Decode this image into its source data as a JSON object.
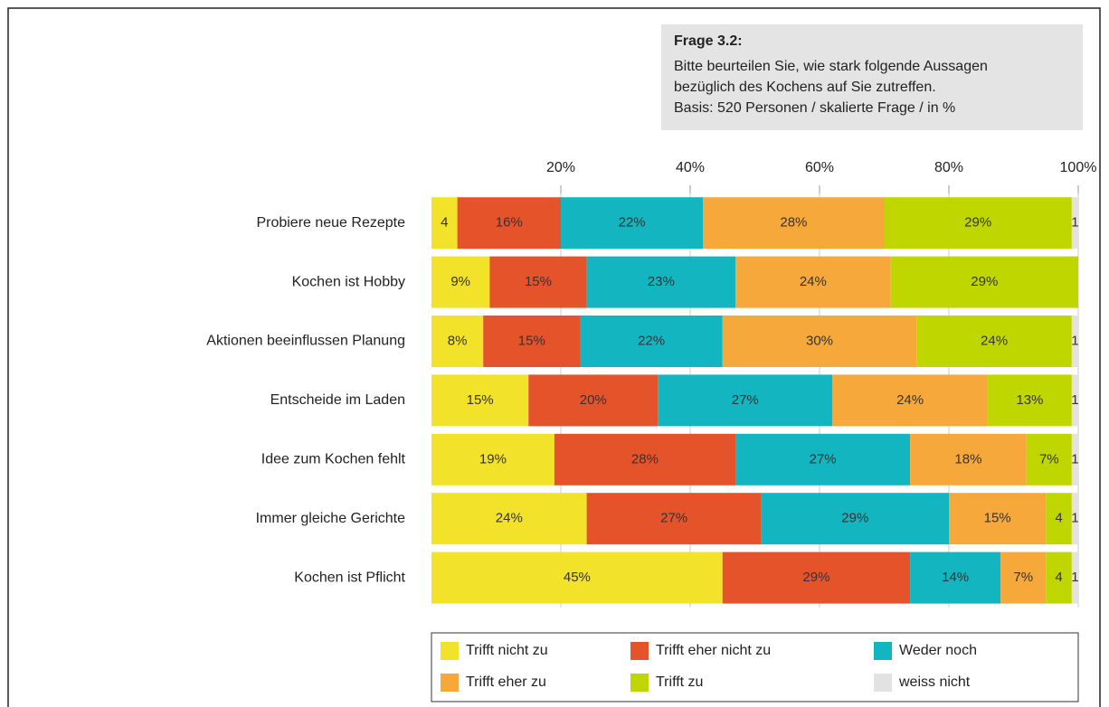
{
  "chart_data": {
    "type": "stacked-bar-horizontal",
    "note_title": "Frage 3.2:",
    "note_lines": [
      "Bitte beurteilen Sie, wie stark folgende Aussagen",
      "bezüglich des Kochens auf Sie zutreffen.",
      "Basis: 520 Personen / skalierte Frage / in %"
    ],
    "categories": [
      "Probiere neue Rezepte",
      "Kochen ist Hobby",
      "Aktionen beeinflussen Planung",
      "Entscheide im Laden",
      "Idee zum Kochen fehlt",
      "Immer gleiche Gerichte",
      "Kochen ist Pflicht"
    ],
    "xlim": [
      0,
      100
    ],
    "xticks": [
      {
        "value": 20,
        "label": "20%"
      },
      {
        "value": 40,
        "label": "40%"
      },
      {
        "value": 60,
        "label": "60%"
      },
      {
        "value": 80,
        "label": "80%"
      },
      {
        "value": 100,
        "label": "100%"
      }
    ],
    "series": [
      {
        "name": "Trifft nicht zu",
        "color": "#f2e22a",
        "values": [
          4,
          9,
          8,
          15,
          19,
          24,
          45
        ],
        "value_labels": [
          "4",
          "9%",
          "8%",
          "15%",
          "19%",
          "24%",
          "45%"
        ]
      },
      {
        "name": "Trifft eher nicht zu",
        "color": "#e5532b",
        "values": [
          16,
          15,
          15,
          20,
          28,
          27,
          29
        ],
        "value_labels": [
          "16%",
          "15%",
          "15%",
          "20%",
          "28%",
          "27%",
          "29%"
        ]
      },
      {
        "name": "Weder noch",
        "color": "#12b5c0",
        "values": [
          22,
          23,
          22,
          27,
          27,
          29,
          14
        ],
        "value_labels": [
          "22%",
          "23%",
          "22%",
          "27%",
          "27%",
          "29%",
          "14%"
        ]
      },
      {
        "name": "Trifft eher zu",
        "color": "#f6a83a",
        "values": [
          28,
          24,
          30,
          24,
          18,
          15,
          7
        ],
        "value_labels": [
          "28%",
          "24%",
          "30%",
          "24%",
          "18%",
          "15%",
          "7%"
        ]
      },
      {
        "name": "Trifft zu",
        "color": "#c0d600",
        "values": [
          29,
          29,
          24,
          13,
          7,
          4,
          4
        ],
        "value_labels": [
          "29%",
          "29%",
          "24%",
          "13%",
          "7%",
          "4",
          "4"
        ]
      },
      {
        "name": "weiss nicht",
        "color": "#e2e2e2",
        "values": [
          1,
          null,
          1,
          1,
          1,
          1,
          1
        ],
        "value_labels": [
          "1",
          null,
          "1",
          "1",
          "1",
          "1",
          "1"
        ]
      }
    ]
  }
}
